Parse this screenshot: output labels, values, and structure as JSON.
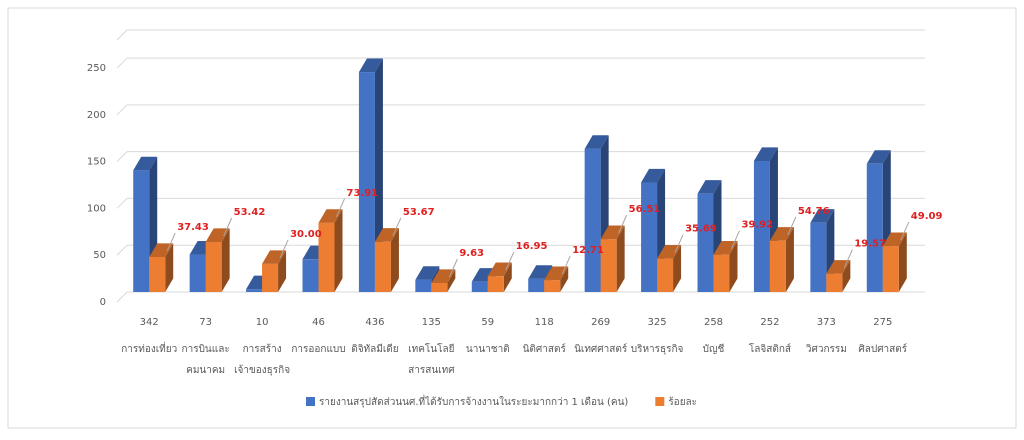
{
  "chart_data": {
    "type": "bar3d",
    "categories": [
      [
        "342",
        "การท่องเที่ยว"
      ],
      [
        "73",
        "การบินและ",
        "คมนาคม"
      ],
      [
        "10",
        "การสร้าง",
        "เจ้าของธุรกิจ"
      ],
      [
        "46",
        "การออกแบบ"
      ],
      [
        "436",
        "ดิจิทัลมีเดีย"
      ],
      [
        "135",
        "เทคโนโลยี",
        "สารสนเทศ"
      ],
      [
        "59",
        "นานาชาติ"
      ],
      [
        "118",
        "นิติศาสตร์"
      ],
      [
        "269",
        "นิเทศศาสตร์"
      ],
      [
        "325",
        "บริหารธุรกิจ"
      ],
      [
        "258",
        "บัญชี"
      ],
      [
        "252",
        "โลจิสติกส์"
      ],
      [
        "373",
        "วิศวกรรม"
      ],
      [
        "275",
        "ศิลปศาสตร์"
      ]
    ],
    "series": [
      {
        "name": "รายงานสรุปสัดส่วนนศ.ที่ได้รับการจ้างงานในระยะมากกว่า 1 เดือน (คน)",
        "color": "#4472c4",
        "values": [
          130,
          40,
          3,
          35,
          235,
          13,
          11,
          14,
          153,
          117,
          105,
          140,
          74,
          137
        ]
      },
      {
        "name": "ร้อยละ",
        "color": "#ed7d31",
        "values": [
          37.43,
          53.42,
          30.0,
          73.91,
          53.67,
          9.63,
          16.95,
          12.71,
          56.51,
          35.69,
          39.92,
          54.76,
          19.57,
          49.09
        ],
        "value_labels": [
          "37.43",
          "53.42",
          "30.00",
          "73.91",
          "53.67",
          "9.63",
          "16.95",
          "12.71",
          "56.51",
          "35.69",
          "39.92",
          "54.76",
          "19.57",
          "49.09"
        ]
      }
    ],
    "ylim": [
      0,
      280
    ],
    "yticks": [
      0,
      50,
      100,
      150,
      200,
      250
    ],
    "grid": true,
    "legend": "bottom"
  }
}
